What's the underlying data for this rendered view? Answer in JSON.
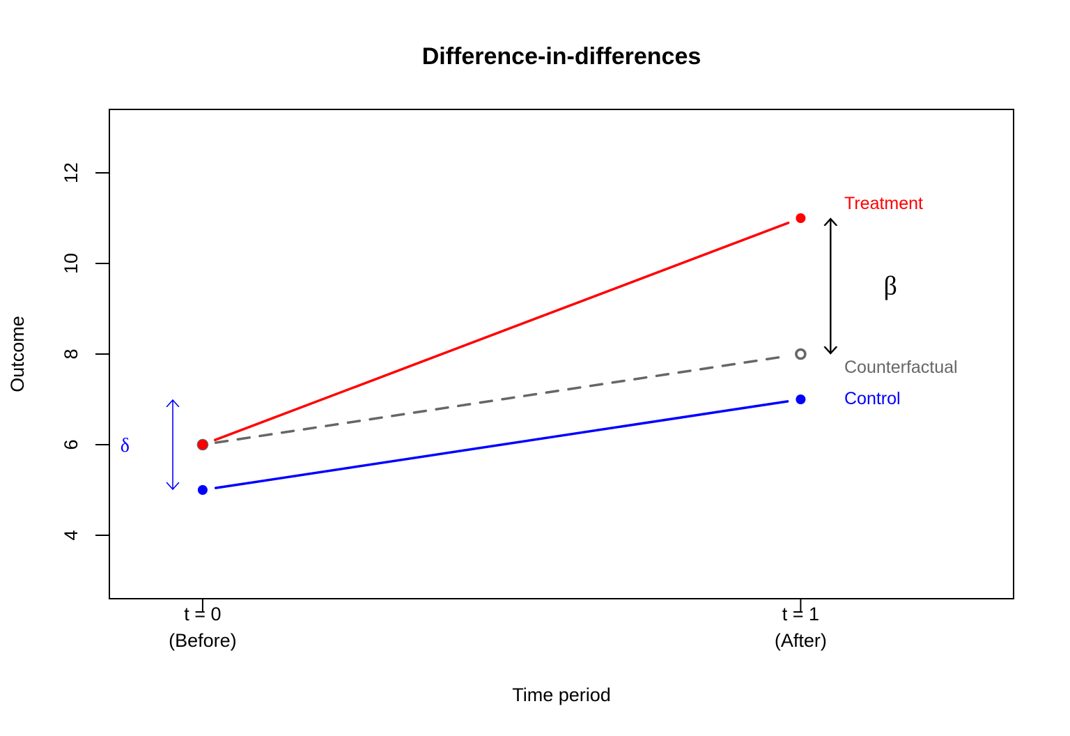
{
  "chart_data": {
    "type": "line",
    "title": "Difference-in-differences",
    "xlabel": "Time period",
    "ylabel": "Outcome",
    "xlim": [
      -0.1,
      1.3
    ],
    "ylim": [
      3,
      13
    ],
    "grid": false,
    "x_ticks": [
      {
        "value": 0,
        "label_line1": "t = 0",
        "label_line2": "(Before)"
      },
      {
        "value": 1,
        "label_line1": "t = 1",
        "label_line2": "(After)"
      }
    ],
    "y_ticks": [
      4,
      6,
      8,
      10,
      12
    ],
    "x": [
      0,
      1
    ],
    "series": [
      {
        "name": "Treatment",
        "values": [
          6,
          11
        ],
        "color": "#FF0000",
        "line_style": "solid",
        "marker": "filled-circle"
      },
      {
        "name": "Counterfactual",
        "values": [
          6,
          8
        ],
        "color": "#666666",
        "line_style": "dashed",
        "marker": "open-circle"
      },
      {
        "name": "Control",
        "values": [
          5,
          7
        ],
        "color": "#0000FF",
        "line_style": "solid",
        "marker": "filled-circle"
      }
    ],
    "annotations": [
      {
        "type": "double-arrow",
        "label": "β",
        "x": 1.05,
        "from": 8,
        "to": 11,
        "color": "#000000",
        "label_x": 1.15,
        "label_y": 9.5
      },
      {
        "type": "double-arrow",
        "label": "δ",
        "x": -0.05,
        "from": 5,
        "to": 7,
        "color": "#0000FF",
        "label_x": -0.13,
        "label_y": 6
      }
    ],
    "legend": "inline-right-labels"
  }
}
